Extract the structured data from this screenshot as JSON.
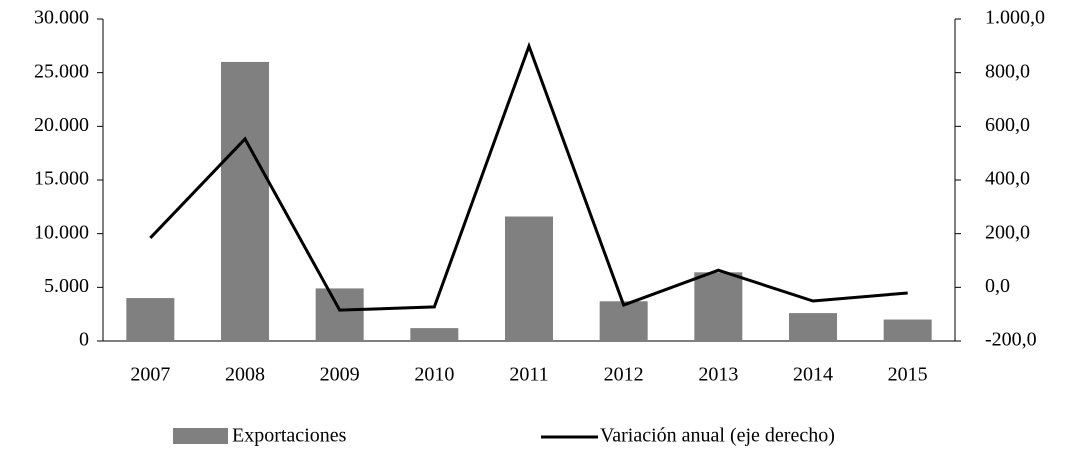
{
  "chart_data": {
    "type": "bar_line",
    "categories": [
      "2007",
      "2008",
      "2009",
      "2010",
      "2011",
      "2012",
      "2013",
      "2014",
      "2015"
    ],
    "series": [
      {
        "name": "Exportaciones",
        "type": "bar",
        "color": "#808080",
        "values": [
          4000,
          26000,
          4900,
          1200,
          11600,
          3700,
          6400,
          2600,
          2000
        ]
      },
      {
        "name": "Variación anual (eje derecho)",
        "type": "line",
        "axis": "y2",
        "color": "#000000",
        "values": [
          184,
          553,
          -85,
          -73,
          899,
          -66,
          64,
          -51,
          -21
        ]
      }
    ],
    "ylim": [
      0,
      30000
    ],
    "yticks": [
      0,
      {
        "value": 5000,
        "label": "5.000"
      },
      {
        "value": 10000,
        "label": "10.000"
      },
      {
        "value": 15000,
        "label": "15.000"
      },
      {
        "value": 20000,
        "label": "20.000"
      },
      {
        "value": 25000,
        "label": "25.000"
      },
      {
        "value": 30000,
        "label": "30.000"
      }
    ],
    "y2lim": [
      -200,
      1000
    ],
    "y2ticks": [
      {
        "value": -200,
        "label": "-200,0"
      },
      {
        "value": 0,
        "label": "0,0"
      },
      {
        "value": 200,
        "label": "200,0"
      },
      {
        "value": 400,
        "label": "400,0"
      },
      {
        "value": 600,
        "label": "600,0"
      },
      {
        "value": 800,
        "label": "800,0"
      },
      {
        "value": 1000,
        "label": "1.000,0"
      }
    ],
    "legend": "bottom",
    "grid": false
  }
}
